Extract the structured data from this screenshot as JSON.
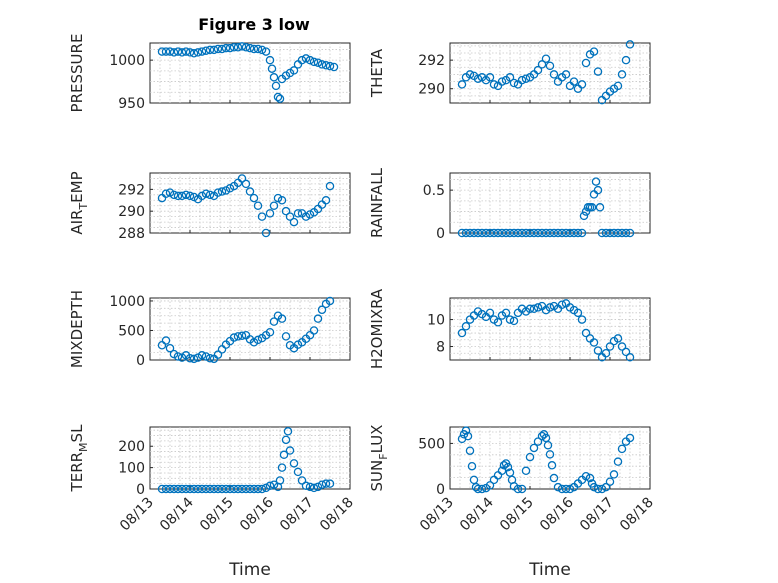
{
  "figure": {
    "title": "Figure 3 low"
  },
  "chart_data": [
    {
      "type": "scatter",
      "title": "Figure 3 low",
      "ylabel": "PRESSURE",
      "xlabel": "",
      "ylim": [
        950,
        1020
      ],
      "yticks": [
        950,
        1000
      ],
      "xlim": [
        "2021-08-13",
        "2021-08-18"
      ],
      "xticks": [
        "08/13",
        "08/14",
        "08/15",
        "08/16",
        "08/17",
        "08/18"
      ],
      "series": [
        {
          "x": [
            0.3,
            0.4,
            0.5,
            0.6,
            0.7,
            0.8,
            0.9,
            1.0,
            1.1,
            1.2,
            1.3,
            1.4,
            1.5,
            1.6,
            1.7,
            1.8,
            1.9,
            2.0,
            2.1,
            2.2,
            2.3,
            2.4,
            2.5,
            2.6,
            2.7,
            2.8,
            2.9,
            3.0,
            3.05,
            3.1,
            3.15,
            3.2,
            3.25,
            3.3,
            3.4,
            3.5,
            3.6,
            3.7,
            3.8,
            3.9,
            4.0,
            4.1,
            4.2,
            4.3,
            4.4,
            4.5,
            4.6
          ],
          "y": [
            1010,
            1010,
            1010,
            1009,
            1010,
            1009,
            1010,
            1009,
            1008,
            1009,
            1010,
            1011,
            1012,
            1012,
            1013,
            1013,
            1014,
            1014,
            1015,
            1015,
            1016,
            1015,
            1014,
            1013,
            1013,
            1012,
            1010,
            1000,
            990,
            980,
            970,
            957,
            955,
            978,
            982,
            985,
            988,
            995,
            1000,
            1002,
            1000,
            998,
            997,
            995,
            994,
            993,
            992
          ]
        }
      ]
    },
    {
      "type": "scatter",
      "title": "",
      "ylabel": "THETA",
      "xlabel": "",
      "ylim": [
        289,
        293.2
      ],
      "yticks": [
        290,
        292
      ],
      "xlim": [
        "2021-08-13",
        "2021-08-18"
      ],
      "xticks": [
        "08/13",
        "08/14",
        "08/15",
        "08/16",
        "08/17",
        "08/18"
      ],
      "series": [
        {
          "x": [
            0.3,
            0.4,
            0.5,
            0.6,
            0.7,
            0.8,
            0.9,
            1.0,
            1.1,
            1.2,
            1.3,
            1.4,
            1.5,
            1.6,
            1.7,
            1.8,
            1.9,
            2.0,
            2.1,
            2.2,
            2.3,
            2.4,
            2.5,
            2.6,
            2.7,
            2.8,
            2.9,
            3.0,
            3.1,
            3.2,
            3.3,
            3.4,
            3.5,
            3.6,
            3.7,
            3.8,
            3.9,
            4.0,
            4.1,
            4.2,
            4.3,
            4.4,
            4.5
          ],
          "y": [
            290.3,
            290.8,
            291.0,
            290.9,
            290.7,
            290.8,
            290.6,
            290.8,
            290.3,
            290.2,
            290.5,
            290.6,
            290.8,
            290.4,
            290.3,
            290.6,
            290.7,
            290.8,
            291.0,
            291.3,
            291.7,
            292.1,
            291.6,
            291.0,
            290.5,
            290.8,
            291.0,
            290.2,
            290.5,
            290.0,
            290.3,
            291.8,
            292.4,
            292.6,
            291.2,
            289.2,
            289.5,
            289.8,
            290.0,
            290.2,
            291.0,
            292.0,
            293.1
          ]
        }
      ]
    },
    {
      "type": "scatter",
      "title": "",
      "ylabel": "AIR_TEMP",
      "xlabel": "",
      "ylim": [
        288,
        293.5
      ],
      "yticks": [
        288,
        290,
        292
      ],
      "xlim": [
        "2021-08-13",
        "2021-08-18"
      ],
      "xticks": [
        "08/13",
        "08/14",
        "08/15",
        "08/16",
        "08/17",
        "08/18"
      ],
      "series": [
        {
          "x": [
            0.3,
            0.4,
            0.5,
            0.6,
            0.7,
            0.8,
            0.9,
            1.0,
            1.1,
            1.2,
            1.3,
            1.4,
            1.5,
            1.6,
            1.7,
            1.8,
            1.9,
            2.0,
            2.1,
            2.2,
            2.3,
            2.4,
            2.5,
            2.6,
            2.7,
            2.8,
            2.9,
            3.0,
            3.1,
            3.2,
            3.3,
            3.4,
            3.5,
            3.6,
            3.7,
            3.8,
            3.9,
            4.0,
            4.1,
            4.2,
            4.3,
            4.4,
            4.5
          ],
          "y": [
            291.2,
            291.6,
            291.7,
            291.5,
            291.4,
            291.4,
            291.5,
            291.4,
            291.3,
            291.1,
            291.4,
            291.6,
            291.5,
            291.4,
            291.7,
            291.8,
            291.9,
            292.1,
            292.3,
            292.6,
            293.0,
            292.5,
            291.8,
            291.2,
            290.5,
            289.5,
            288.0,
            289.8,
            290.5,
            291.2,
            291.0,
            290.0,
            289.5,
            289.0,
            289.8,
            289.8,
            289.5,
            289.7,
            289.9,
            290.2,
            290.6,
            291.0,
            292.3
          ]
        }
      ]
    },
    {
      "type": "scatter",
      "title": "",
      "ylabel": "RAINFALL",
      "xlabel": "",
      "ylim": [
        0,
        0.7
      ],
      "yticks": [
        0,
        0.5
      ],
      "xlim": [
        "2021-08-13",
        "2021-08-18"
      ],
      "xticks": [
        "08/13",
        "08/14",
        "08/15",
        "08/16",
        "08/17",
        "08/18"
      ],
      "series": [
        {
          "x": [
            0.3,
            0.4,
            0.5,
            0.6,
            0.7,
            0.8,
            0.9,
            1.0,
            1.1,
            1.2,
            1.3,
            1.4,
            1.5,
            1.6,
            1.7,
            1.8,
            1.9,
            2.0,
            2.1,
            2.2,
            2.3,
            2.4,
            2.5,
            2.6,
            2.7,
            2.8,
            2.9,
            3.0,
            3.1,
            3.2,
            3.3,
            3.35,
            3.4,
            3.45,
            3.5,
            3.55,
            3.6,
            3.65,
            3.7,
            3.75,
            3.8,
            3.9,
            4.0,
            4.1,
            4.2,
            4.3,
            4.4,
            4.5
          ],
          "y": [
            0,
            0,
            0,
            0,
            0,
            0,
            0,
            0,
            0,
            0,
            0,
            0,
            0,
            0,
            0,
            0,
            0,
            0,
            0,
            0,
            0,
            0,
            0,
            0,
            0,
            0,
            0,
            0,
            0,
            0,
            0,
            0.2,
            0.25,
            0.3,
            0.3,
            0.3,
            0.45,
            0.6,
            0.5,
            0.3,
            0,
            0,
            0,
            0,
            0,
            0,
            0,
            0
          ]
        }
      ]
    },
    {
      "type": "scatter",
      "title": "",
      "ylabel": "MIXDEPTH",
      "xlabel": "",
      "ylim": [
        0,
        1050
      ],
      "yticks": [
        0,
        500,
        1000
      ],
      "xlim": [
        "2021-08-13",
        "2021-08-18"
      ],
      "xticks": [
        "08/13",
        "08/14",
        "08/15",
        "08/16",
        "08/17",
        "08/18"
      ],
      "series": [
        {
          "x": [
            0.3,
            0.4,
            0.5,
            0.6,
            0.7,
            0.8,
            0.9,
            1.0,
            1.1,
            1.2,
            1.3,
            1.4,
            1.5,
            1.6,
            1.7,
            1.8,
            1.9,
            2.0,
            2.1,
            2.2,
            2.3,
            2.4,
            2.5,
            2.6,
            2.7,
            2.8,
            2.9,
            3.0,
            3.1,
            3.2,
            3.3,
            3.4,
            3.5,
            3.6,
            3.7,
            3.8,
            3.9,
            4.0,
            4.1,
            4.2,
            4.3,
            4.4,
            4.5
          ],
          "y": [
            250,
            330,
            200,
            100,
            60,
            40,
            80,
            30,
            20,
            40,
            80,
            60,
            30,
            20,
            90,
            180,
            260,
            320,
            380,
            400,
            410,
            420,
            350,
            300,
            340,
            370,
            420,
            470,
            650,
            750,
            700,
            400,
            250,
            200,
            260,
            300,
            360,
            420,
            500,
            700,
            850,
            950,
            1000
          ]
        }
      ]
    },
    {
      "type": "scatter",
      "title": "",
      "ylabel": "H2OMIXRA",
      "xlabel": "",
      "ylim": [
        7,
        11.6
      ],
      "yticks": [
        8,
        10
      ],
      "xlim": [
        "2021-08-13",
        "2021-08-18"
      ],
      "xticks": [
        "08/13",
        "08/14",
        "08/15",
        "08/16",
        "08/17",
        "08/18"
      ],
      "series": [
        {
          "x": [
            0.3,
            0.4,
            0.5,
            0.6,
            0.7,
            0.8,
            0.9,
            1.0,
            1.1,
            1.2,
            1.3,
            1.4,
            1.5,
            1.6,
            1.7,
            1.8,
            1.9,
            2.0,
            2.1,
            2.2,
            2.3,
            2.4,
            2.5,
            2.6,
            2.7,
            2.8,
            2.9,
            3.0,
            3.1,
            3.2,
            3.3,
            3.4,
            3.5,
            3.6,
            3.7,
            3.8,
            3.9,
            4.0,
            4.1,
            4.2,
            4.3,
            4.4,
            4.5
          ],
          "y": [
            9.0,
            9.5,
            10.0,
            10.3,
            10.6,
            10.4,
            10.2,
            10.5,
            10.0,
            9.8,
            10.3,
            10.5,
            10.0,
            9.9,
            10.5,
            10.8,
            10.6,
            10.8,
            10.8,
            10.9,
            11.0,
            10.7,
            10.9,
            11.0,
            10.8,
            11.1,
            11.2,
            10.9,
            10.7,
            10.5,
            10.0,
            9.0,
            8.6,
            8.3,
            7.7,
            7.2,
            7.5,
            8.0,
            8.4,
            8.6,
            8.0,
            7.6,
            7.2
          ]
        }
      ]
    },
    {
      "type": "scatter",
      "title": "",
      "ylabel": "TERR_MSL",
      "xlabel": "Time",
      "ylim": [
        0,
        290
      ],
      "yticks": [
        0,
        100,
        200
      ],
      "xlim": [
        "2021-08-13",
        "2021-08-18"
      ],
      "xticks": [
        "08/13",
        "08/14",
        "08/15",
        "08/16",
        "08/17",
        "08/18"
      ],
      "series": [
        {
          "x": [
            0.3,
            0.4,
            0.5,
            0.6,
            0.7,
            0.8,
            0.9,
            1.0,
            1.1,
            1.2,
            1.3,
            1.4,
            1.5,
            1.6,
            1.7,
            1.8,
            1.9,
            2.0,
            2.1,
            2.2,
            2.3,
            2.4,
            2.5,
            2.6,
            2.7,
            2.8,
            2.9,
            3.0,
            3.1,
            3.2,
            3.25,
            3.3,
            3.35,
            3.4,
            3.45,
            3.5,
            3.6,
            3.7,
            3.8,
            3.9,
            4.0,
            4.1,
            4.2,
            4.3,
            4.4,
            4.5
          ],
          "y": [
            0,
            0,
            0,
            0,
            0,
            0,
            0,
            0,
            0,
            0,
            0,
            0,
            0,
            0,
            0,
            0,
            0,
            0,
            0,
            0,
            0,
            0,
            0,
            0,
            0,
            0,
            5,
            15,
            20,
            10,
            40,
            100,
            160,
            230,
            270,
            180,
            120,
            80,
            40,
            15,
            10,
            5,
            10,
            20,
            25,
            25
          ]
        }
      ]
    },
    {
      "type": "scatter",
      "title": "",
      "ylabel": "SUN_FLUX",
      "xlabel": "Time",
      "ylim": [
        0,
        680
      ],
      "yticks": [
        0,
        500
      ],
      "xlim": [
        "2021-08-13",
        "2021-08-18"
      ],
      "xticks": [
        "08/13",
        "08/14",
        "08/15",
        "08/16",
        "08/17",
        "08/18"
      ],
      "series": [
        {
          "x": [
            0.3,
            0.35,
            0.4,
            0.45,
            0.5,
            0.55,
            0.6,
            0.65,
            0.7,
            0.8,
            0.9,
            1.0,
            1.1,
            1.2,
            1.3,
            1.35,
            1.4,
            1.45,
            1.5,
            1.55,
            1.6,
            1.7,
            1.8,
            1.9,
            2.0,
            2.1,
            2.2,
            2.3,
            2.35,
            2.4,
            2.45,
            2.5,
            2.55,
            2.6,
            2.7,
            2.8,
            2.9,
            3.0,
            3.1,
            3.2,
            3.3,
            3.4,
            3.5,
            3.55,
            3.6,
            3.7,
            3.8,
            3.9,
            4.0,
            4.1,
            4.2,
            4.3,
            4.4,
            4.5
          ],
          "y": [
            550,
            600,
            640,
            580,
            420,
            250,
            100,
            20,
            0,
            0,
            10,
            40,
            100,
            150,
            200,
            260,
            280,
            240,
            180,
            100,
            30,
            0,
            0,
            200,
            350,
            450,
            520,
            580,
            600,
            560,
            480,
            380,
            260,
            120,
            20,
            0,
            0,
            0,
            20,
            60,
            100,
            140,
            120,
            60,
            20,
            0,
            0,
            20,
            80,
            160,
            300,
            440,
            520,
            560
          ]
        }
      ]
    }
  ]
}
